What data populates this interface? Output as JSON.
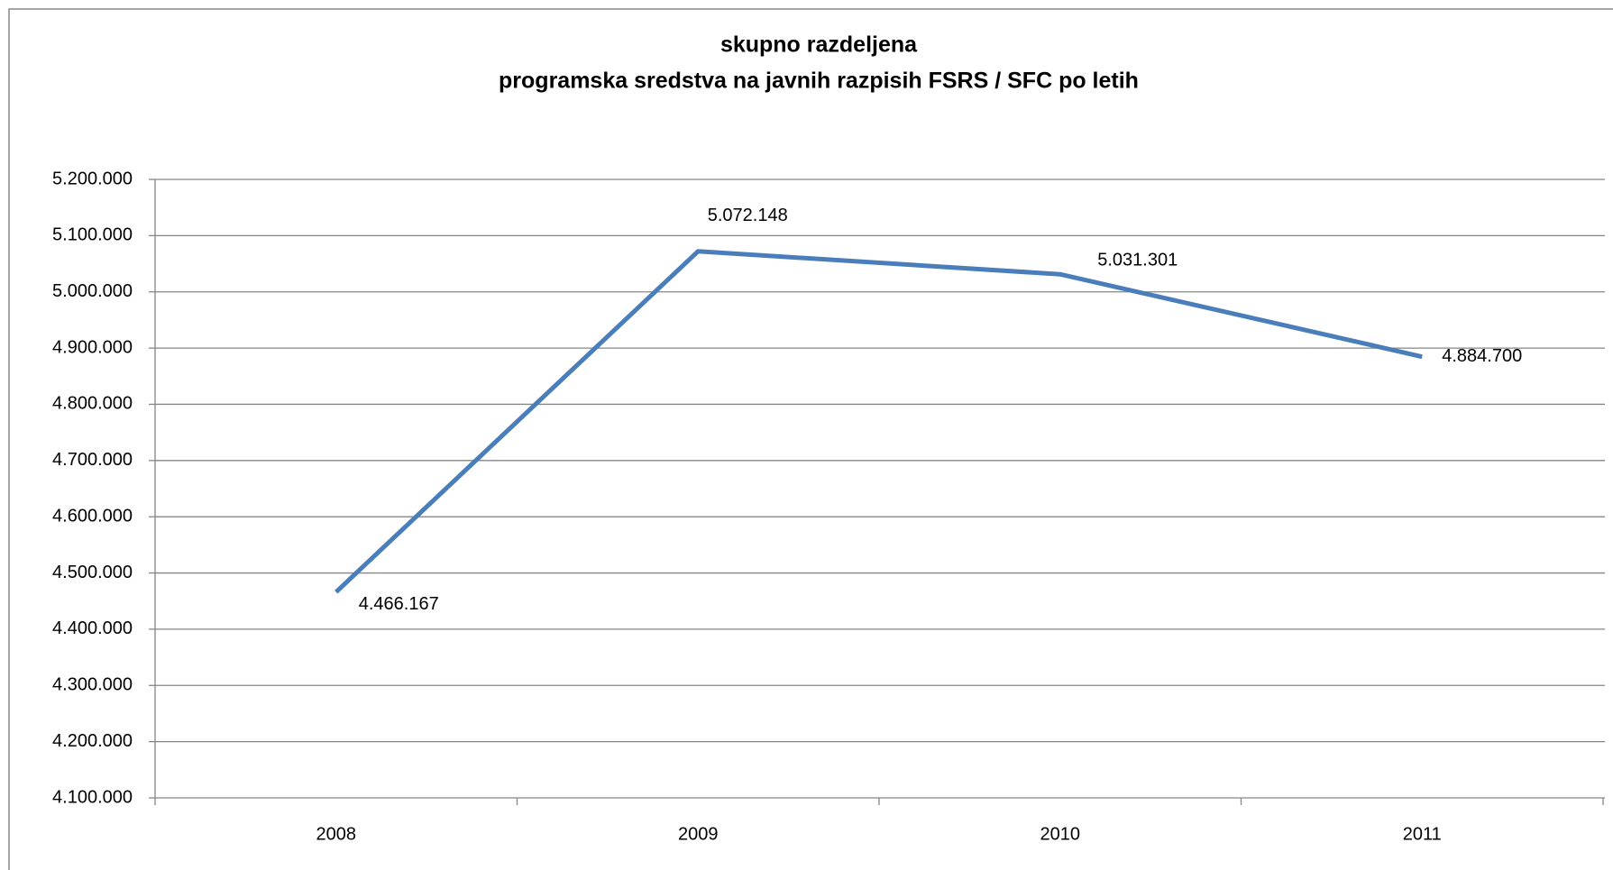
{
  "chart_data": {
    "type": "line",
    "title": "skupno razdeljena",
    "subtitle": "programska sredstva  na javnih razpisih FSRS / SFC po letih",
    "categories": [
      "2008",
      "2009",
      "2010",
      "2011"
    ],
    "values": [
      4466167,
      5072148,
      5031301,
      4884700
    ],
    "value_labels": [
      "4.466.167",
      "5.072.148",
      "5.031.301",
      "4.884.700"
    ],
    "color": "#4a7ebb",
    "ylim": [
      4100000,
      5200000
    ],
    "yticks": [
      {
        "value": 4100000,
        "label": "4.100.000"
      },
      {
        "value": 4200000,
        "label": "4.200.000"
      },
      {
        "value": 4300000,
        "label": "4.300.000"
      },
      {
        "value": 4400000,
        "label": "4.400.000"
      },
      {
        "value": 4500000,
        "label": "4.500.000"
      },
      {
        "value": 4600000,
        "label": "4.600.000"
      },
      {
        "value": 4700000,
        "label": "4.700.000"
      },
      {
        "value": 4800000,
        "label": "4.800.000"
      },
      {
        "value": 4900000,
        "label": "4.900.000"
      },
      {
        "value": 5000000,
        "label": "5.000.000"
      },
      {
        "value": 5100000,
        "label": "5.100.000"
      },
      {
        "value": 5200000,
        "label": "5.200.000"
      }
    ],
    "grid": true
  }
}
